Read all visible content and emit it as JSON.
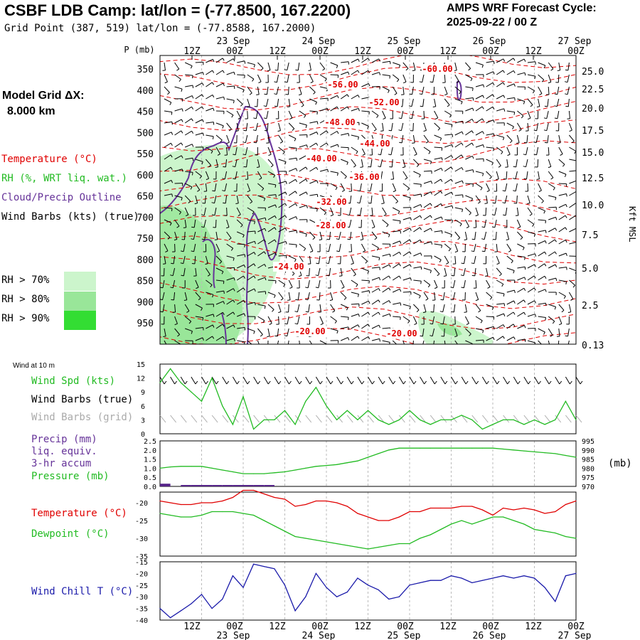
{
  "header": {
    "title": "CSBF LDB Camp:  lat/lon = (-77.8500, 167.2200)",
    "grid_point": "Grid Point (387, 519) lat/lon = (-77.8588, 167.2000)",
    "cycle_line1": "AMPS WRF Forecast Cycle:",
    "cycle_line2": "2025-09-22 / 00  Z"
  },
  "left_labels": {
    "model_grid_1": "Model Grid ΔX:",
    "model_grid_2": "8.000 km",
    "temperature": "Temperature (°C)",
    "rh": "RH (%, WRT liq. wat.)",
    "cloud": "Cloud/Precip Outline",
    "wind_barbs": "Wind Barbs (kts) (true)",
    "rh70": "RH > 70%",
    "rh80": "RH > 80%",
    "rh90": "RH > 90%",
    "wind10": "Wind at 10 m",
    "wind_spd": "Wind Spd (kts)",
    "wind_barbs_true": "Wind Barbs (true)",
    "wind_barbs_grid": "Wind Barbs (grid)",
    "precip1": "Precip (mm)",
    "precip2": "liq. equiv.",
    "precip3": "3-hr accum",
    "pressure": "Pressure (mb)",
    "temp2": "Temperature (°C)",
    "dewpoint": "Dewpoint (°C)",
    "windchill": "Wind Chill T (°C)"
  },
  "colors": {
    "temperature": "#e00000",
    "rh70": "#ccf5cc",
    "rh80": "#99e699",
    "rh90": "#33dd33",
    "cloud": "#663399",
    "wind_spd": "#22bb22",
    "barbs_grid": "#aaaaaa",
    "precip": "#552288",
    "windchill": "#1a1aaa"
  },
  "chart_data": [
    {
      "type": "line",
      "name": "time-height cross section",
      "ylabel": "P (mb)",
      "y2label": "Kft MSL",
      "pressure_ticks": [
        "350",
        "400",
        "450",
        "500",
        "550",
        "600",
        "650",
        "700",
        "750",
        "800",
        "850",
        "900",
        "950"
      ],
      "height_ticks": [
        "25.0",
        "22.5",
        "20.0",
        "17.5",
        "15.0",
        "12.5",
        "10.0",
        "7.5",
        "5.0",
        "2.5",
        "0.13"
      ],
      "time_ticks": [
        "12Z",
        "00Z",
        "12Z",
        "00Z",
        "12Z",
        "00Z",
        "12Z",
        "00Z",
        "12Z",
        "00Z"
      ],
      "date_labels": [
        "23 Sep",
        "24 Sep",
        "25 Sep",
        "26 Sep",
        "27 Sep"
      ],
      "temperature_contour_labels": [
        "-60.00",
        "-56.00",
        "-52.00",
        "-48.00",
        "-44.00",
        "-40.00",
        "-36.00",
        "-32.00",
        "-28.00",
        "-24.00",
        "-20.00",
        "-20.00"
      ]
    },
    {
      "type": "line",
      "name": "wind speed 10 m",
      "yticks": [
        "0",
        "3",
        "6",
        "9",
        "12",
        "15"
      ],
      "ylim": [
        0,
        15
      ],
      "x_hours": [
        0,
        3,
        6,
        9,
        12,
        15,
        18,
        21,
        24,
        27,
        30,
        33,
        36,
        39,
        42,
        45,
        48,
        51,
        54,
        57,
        60,
        63,
        66,
        69,
        72,
        75,
        78,
        81,
        84,
        87,
        90,
        93,
        96,
        99,
        102,
        105,
        108,
        111,
        114,
        117,
        120
      ],
      "values": [
        11,
        14,
        11,
        9,
        7,
        12,
        6,
        2,
        8,
        1,
        3,
        3,
        5,
        2,
        7,
        10,
        6,
        3,
        5,
        3,
        5,
        3,
        2,
        3,
        5,
        3,
        2,
        3,
        3,
        4,
        3,
        1,
        2,
        3,
        3,
        2,
        3,
        2,
        3,
        7,
        3
      ]
    },
    {
      "type": "line",
      "name": "pressure and precip",
      "yticks_left": [
        "0.0",
        "0.5",
        "1.0",
        "1.5",
        "2.0",
        "2.5"
      ],
      "yticks_right": [
        "995",
        "990",
        "985",
        "980",
        "975",
        "970"
      ],
      "y2label": "(mb)",
      "ylim_pressure": [
        970,
        995
      ],
      "ylim_precip": [
        0,
        2.5
      ],
      "pressure": [
        980,
        980.7,
        981,
        981,
        981,
        980,
        979,
        978,
        977,
        977,
        977,
        977.5,
        978,
        979,
        980,
        981,
        981.5,
        982,
        983,
        984,
        986,
        988,
        990,
        991,
        991,
        991,
        991,
        991,
        991,
        991,
        991,
        991,
        991,
        990.5,
        990,
        989.5,
        989,
        988.5,
        988,
        987,
        986
      ],
      "precip": [
        0.15,
        0,
        0.08,
        0.08,
        0.08,
        0.08,
        0.08,
        0.08,
        0.08,
        0.08,
        0.08,
        0,
        0,
        0,
        0,
        0,
        0,
        0,
        0,
        0,
        0,
        0,
        0,
        0,
        0,
        0,
        0,
        0,
        0,
        0,
        0,
        0,
        0,
        0,
        0,
        0,
        0,
        0,
        0,
        0,
        0
      ]
    },
    {
      "type": "line",
      "name": "temperature and dewpoint",
      "yticks": [
        "-20",
        "-25",
        "-30",
        "-35"
      ],
      "ylim": [
        -35,
        -17
      ],
      "temperature": [
        -19.5,
        -20,
        -20.5,
        -20.5,
        -20,
        -20,
        -19.5,
        -18.5,
        -16.5,
        -16.5,
        -17.5,
        -18.5,
        -19,
        -21,
        -20.5,
        -19.5,
        -19.5,
        -20,
        -21,
        -23,
        -24,
        -25,
        -25,
        -24,
        -22.5,
        -22.5,
        -21.5,
        -21.5,
        -21.5,
        -21,
        -21,
        -22,
        -23.5,
        -21.5,
        -22,
        -21.5,
        -22,
        -23,
        -22.5,
        -20.5,
        -19.5
      ],
      "dewpoint": [
        -23,
        -23.5,
        -24,
        -24,
        -23.5,
        -22.5,
        -22.5,
        -22.5,
        -23,
        -23.5,
        -25,
        -26.5,
        -28,
        -29.5,
        -30,
        -30.5,
        -31,
        -31.5,
        -32,
        -32.5,
        -33,
        -32.5,
        -32,
        -31.5,
        -31.5,
        -30,
        -29,
        -27.5,
        -26,
        -25,
        -26,
        -25,
        -24,
        -24,
        -25,
        -26,
        -27.5,
        -28,
        -28.5,
        -29.5,
        -30
      ]
    },
    {
      "type": "line",
      "name": "wind chill",
      "yticks": [
        "-15",
        "-20",
        "-25",
        "-30",
        "-35",
        "-40"
      ],
      "ylim": [
        -40,
        -15
      ],
      "values": [
        -35,
        -39,
        -36,
        -33,
        -29,
        -35,
        -31,
        -21,
        -26,
        -16,
        -17,
        -18,
        -25,
        -36,
        -30,
        -20,
        -26,
        -30,
        -28,
        -22,
        -25,
        -27,
        -31,
        -30,
        -25,
        -24,
        -23,
        -23,
        -21,
        -22,
        -24,
        -23,
        -22,
        -21,
        -22,
        -21,
        -22,
        -26,
        -32,
        -21,
        -20
      ]
    }
  ]
}
